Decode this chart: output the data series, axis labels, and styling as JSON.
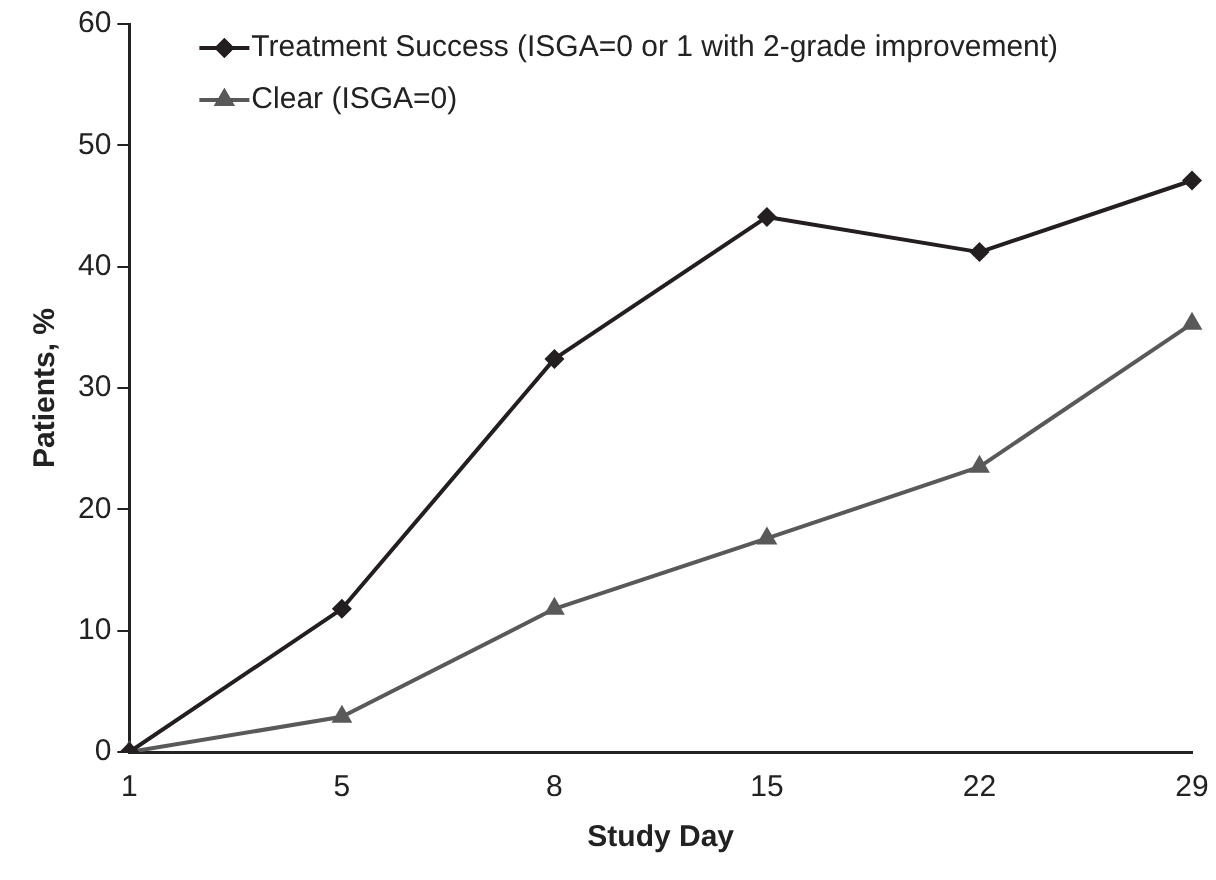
{
  "chart_data": {
    "type": "line",
    "xlabel": "Study Day",
    "ylabel": "Patients, %",
    "categories": [
      "1",
      "5",
      "8",
      "15",
      "22",
      "29"
    ],
    "series": [
      {
        "name": "Treatment Success (ISGA=0 or 1 with 2-grade improvement)",
        "color": "#231f20",
        "marker": "diamond",
        "values": [
          0,
          11.8,
          32.4,
          44.1,
          41.2,
          47.1
        ]
      },
      {
        "name": "Clear (ISGA=0)",
        "color": "#595959",
        "marker": "triangle",
        "values": [
          0,
          2.9,
          11.8,
          17.6,
          23.5,
          35.3
        ]
      }
    ],
    "ylim": [
      0,
      60
    ],
    "yticks": [
      0,
      10,
      20,
      30,
      40,
      50,
      60
    ],
    "grid": false,
    "legend": "top left",
    "line_style": "solid"
  }
}
